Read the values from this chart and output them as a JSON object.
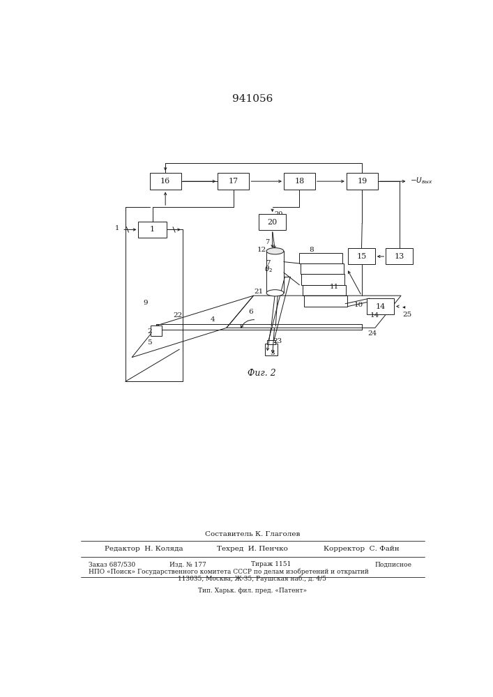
{
  "title": "941056",
  "fig_caption": "Фиг. 2",
  "bg_color": "#ffffff",
  "line_color": "#1a1a1a",
  "title_fontsize": 11,
  "footer_text_1": "Составитель К. Глаголев",
  "footer_text_2_left": "Редактор  Н. Коляда",
  "footer_text_2_mid": "Техред  И. Пенчко",
  "footer_text_2_right": "Корректор  С. Файн",
  "footer_text_3a": "Заказ 687/530",
  "footer_text_3b": "Изд. № 177",
  "footer_text_3c": "Тираж 1151",
  "footer_text_3d": "Подписное",
  "footer_text_4": "НПО «Поиск» Государственного комитета СССР по делам изобретений и открытий",
  "footer_text_5": "113035, Москва, Ж-35, Раушская наб., д. 4/5",
  "footer_text_6": "Тип. Харьк. фил. пред. «Патент»",
  "uout_label": "Uвых"
}
